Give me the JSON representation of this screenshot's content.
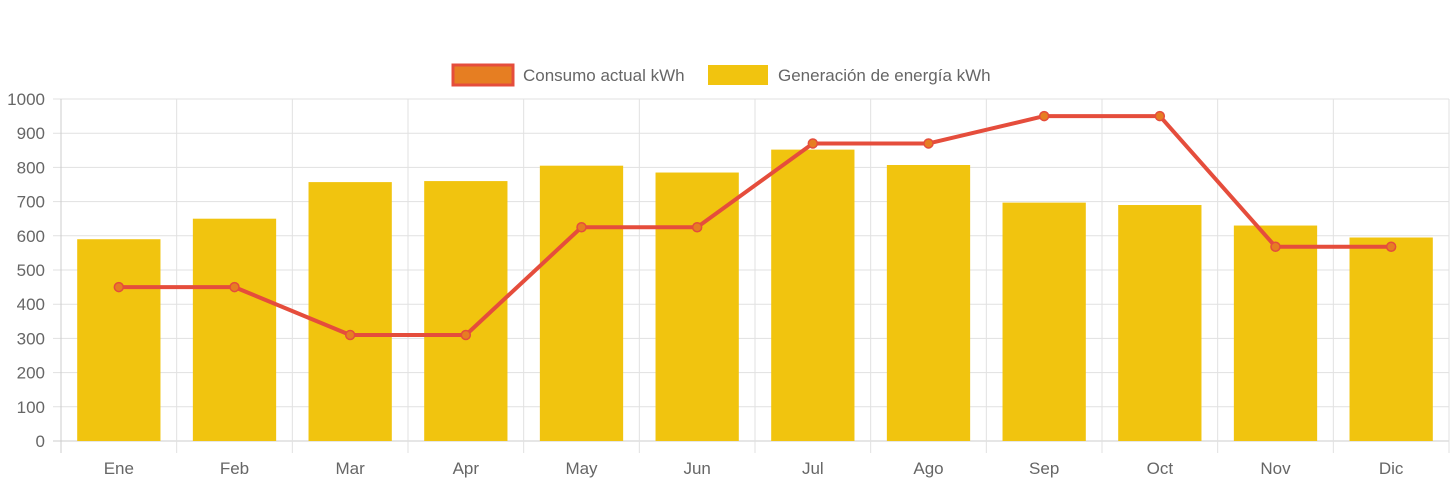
{
  "chart_data": {
    "type": "bar",
    "categories": [
      "Ene",
      "Feb",
      "Mar",
      "Apr",
      "May",
      "Jun",
      "Jul",
      "Ago",
      "Sep",
      "Oct",
      "Nov",
      "Dic"
    ],
    "series": [
      {
        "name": "Consumo actual kWh",
        "type": "line",
        "values": [
          450,
          450,
          310,
          310,
          625,
          625,
          870,
          870,
          950,
          950,
          568,
          568
        ],
        "color": "#e54d3c",
        "point_fill": "#e67e22"
      },
      {
        "name": "Generación de energía kWh",
        "type": "bar",
        "values": [
          590,
          650,
          757,
          760,
          805,
          785,
          852,
          807,
          697,
          690,
          630,
          595
        ],
        "color": "#f1c40f"
      }
    ],
    "yticks": [
      "0",
      "100",
      "200",
      "300",
      "400",
      "500",
      "600",
      "700",
      "800",
      "900",
      "1000"
    ],
    "ylim": [
      0,
      1000
    ],
    "grid": true,
    "legend_position": "top-center",
    "title": "",
    "xlabel": "",
    "ylabel": ""
  }
}
